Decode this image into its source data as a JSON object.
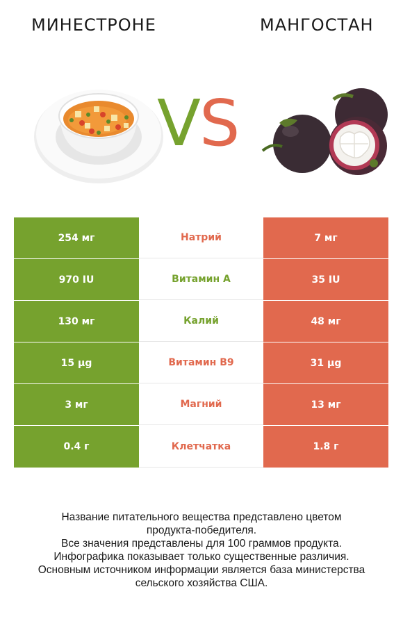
{
  "header": {
    "left_title": "МИНЕСТРОНЕ",
    "right_title": "МАНГОСТАН",
    "vs_v": "V",
    "vs_s": "S"
  },
  "colors": {
    "left": "#76a22e",
    "right": "#e1694e"
  },
  "rows": [
    {
      "left": "254 мг",
      "nutrient": "Натрий",
      "right": "7 мг",
      "winner": "right"
    },
    {
      "left": "970 IU",
      "nutrient": "Витамин A",
      "right": "35 IU",
      "winner": "left"
    },
    {
      "left": "130 мг",
      "nutrient": "Калий",
      "right": "48 мг",
      "winner": "left"
    },
    {
      "left": "15 µg",
      "nutrient": "Витамин B9",
      "right": "31 µg",
      "winner": "right"
    },
    {
      "left": "3 мг",
      "nutrient": "Магний",
      "right": "13 мг",
      "winner": "right"
    },
    {
      "left": "0.4 г",
      "nutrient": "Клетчатка",
      "right": "1.8 г",
      "winner": "right"
    }
  ],
  "footnote": {
    "line1": "Название питательного вещества представлено цветом",
    "line2": "продукта-победителя.",
    "line3": "Все значения представлены для 100 граммов продукта.",
    "line4": "Инфографика показывает только существенные различия.",
    "line5": "Основным источником информации является база министерства",
    "line6": "сельского хозяйства США."
  }
}
